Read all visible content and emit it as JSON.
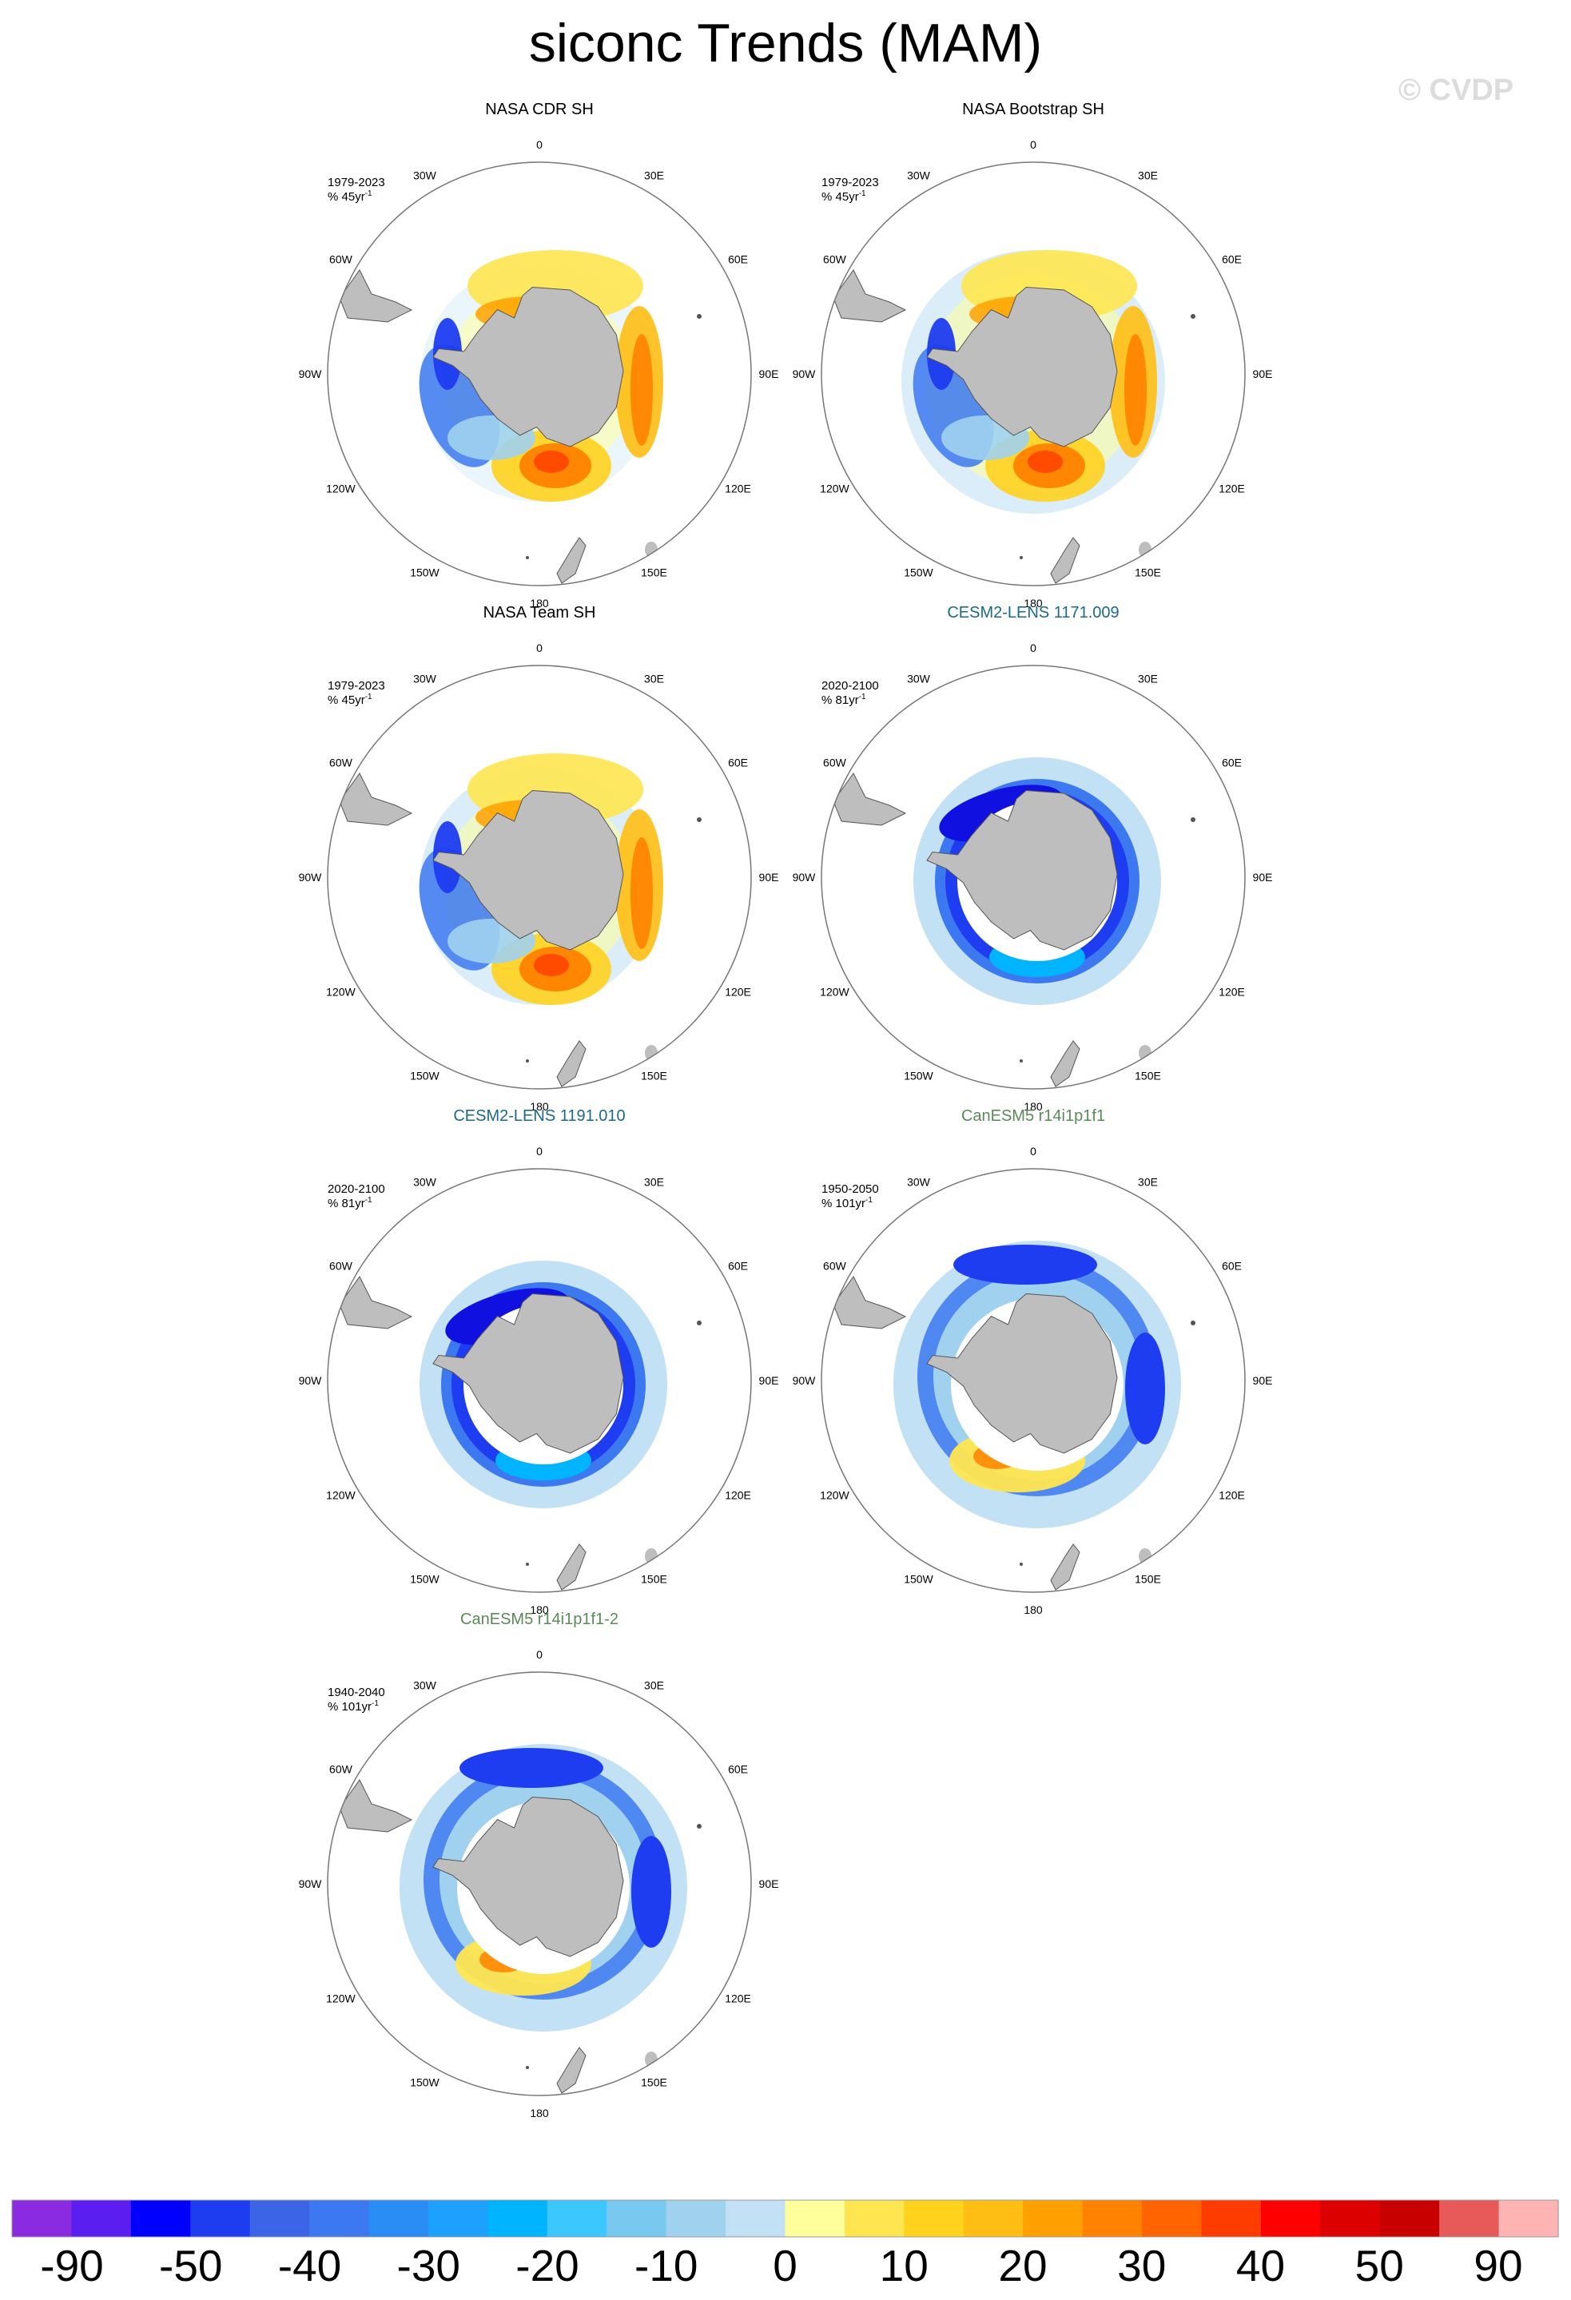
{
  "title": "siconc Trends (MAM)",
  "watermark": "© CVDP",
  "panels": [
    {
      "title": "NASA CDR SH",
      "title_color": "#000000",
      "period": "1979-2023",
      "units": "% 45yr",
      "units_sup": "-1",
      "pattern": "obs"
    },
    {
      "title": "NASA Bootstrap SH",
      "title_color": "#000000",
      "period": "1979-2023",
      "units": "% 45yr",
      "units_sup": "-1",
      "pattern": "obs2"
    },
    {
      "title": "NASA Team SH",
      "title_color": "#000000",
      "period": "1979-2023",
      "units": "% 45yr",
      "units_sup": "-1",
      "pattern": "obs3"
    },
    {
      "title": "CESM2-LENS 1171.009",
      "title_color": "#1a6a8a",
      "period": "2020-2100",
      "units": "% 81yr",
      "units_sup": "-1",
      "pattern": "cesm"
    },
    {
      "title": "CESM2-LENS 1191.010",
      "title_color": "#1a6a8a",
      "period": "2020-2100",
      "units": "% 81yr",
      "units_sup": "-1",
      "pattern": "cesm"
    },
    {
      "title": "CanESM5 r14i1p1f1",
      "title_color": "#5a8a5a",
      "period": "1950-2050",
      "units": "% 101yr",
      "units_sup": "-1",
      "pattern": "can"
    },
    {
      "title": "CanESM5 r14i1p1f1-2",
      "title_color": "#5a8a5a",
      "period": "1940-2040",
      "units": "% 101yr",
      "units_sup": "-1",
      "pattern": "can"
    }
  ],
  "map_labels": {
    "longitudes": [
      "0",
      "30E",
      "60E",
      "90E",
      "120E",
      "150E",
      "180",
      "150W",
      "120W",
      "90W",
      "60W",
      "30W"
    ]
  },
  "colorbar": {
    "colors": [
      "#8a2be2",
      "#5a1ef0",
      "#0000ff",
      "#1e3cf0",
      "#3c64e6",
      "#3c78f0",
      "#2a8cf5",
      "#1ea0ff",
      "#00b4ff",
      "#3cc8ff",
      "#78c8f0",
      "#a0d2f0",
      "#c3e1f5",
      "#ffff9b",
      "#ffe650",
      "#ffd21e",
      "#ffbe14",
      "#ffa000",
      "#ff8200",
      "#ff6400",
      "#ff3c00",
      "#ff0000",
      "#dc0000",
      "#c80000",
      "#e65a5a",
      "#ffb4b4"
    ],
    "tick_labels": [
      "-90",
      "-50",
      "-40",
      "-30",
      "-20",
      "-10",
      "0",
      "10",
      "20",
      "30",
      "40",
      "50",
      "90"
    ]
  }
}
